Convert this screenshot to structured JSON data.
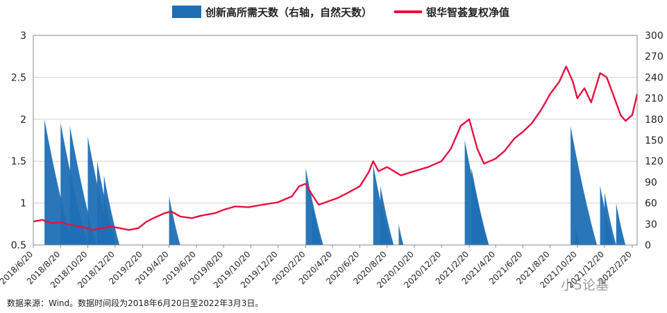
{
  "chart_data": {
    "type": "bar+line",
    "legend": {
      "bar_label": "创新高所需天数（右轴，自然天数）",
      "line_label": "银华智荟复权净值"
    },
    "colors": {
      "bar": "#1f6fb5",
      "line": "#e8103f",
      "grid": "#d0d0d0"
    },
    "left_axis": {
      "ylim": [
        0.5,
        3
      ],
      "ticks": [
        "0.5",
        "1",
        "1.5",
        "2",
        "2.5",
        "3"
      ]
    },
    "right_axis": {
      "ylim": [
        0,
        300
      ],
      "ticks": [
        "0",
        "30",
        "60",
        "90",
        "120",
        "150",
        "180",
        "210",
        "240",
        "270",
        "300"
      ]
    },
    "x_range": [
      "2018-06-20",
      "2022-03-03"
    ],
    "x_ticks": [
      "2018/6/20",
      "2018/8/20",
      "2018/10/20",
      "2018/12/20",
      "2019/2/20",
      "2019/4/20",
      "2019/6/20",
      "2019/8/20",
      "2019/10/20",
      "2019/12/20",
      "2020/2/20",
      "2020/4/20",
      "2020/6/20",
      "2020/8/20",
      "2020/10/20",
      "2020/12/20",
      "2021/2/20",
      "2021/4/20",
      "2021/6/20",
      "2021/8/20",
      "2021/10/20",
      "2021/12/20",
      "2022/2/20"
    ],
    "grid": true,
    "series": [
      {
        "name": "银华智荟复权净值",
        "axis": "left",
        "kind": "line",
        "points": [
          [
            "2018-06-20",
            0.78
          ],
          [
            "2018-07-10",
            0.8
          ],
          [
            "2018-07-30",
            0.76
          ],
          [
            "2018-08-20",
            0.77
          ],
          [
            "2018-09-10",
            0.74
          ],
          [
            "2018-10-10",
            0.71
          ],
          [
            "2018-10-30",
            0.68
          ],
          [
            "2018-11-20",
            0.7
          ],
          [
            "2018-12-10",
            0.72
          ],
          [
            "2018-12-31",
            0.7
          ],
          [
            "2019-01-20",
            0.68
          ],
          [
            "2019-02-10",
            0.7
          ],
          [
            "2019-03-01",
            0.78
          ],
          [
            "2019-03-20",
            0.83
          ],
          [
            "2019-04-10",
            0.88
          ],
          [
            "2019-04-25",
            0.9
          ],
          [
            "2019-05-15",
            0.84
          ],
          [
            "2019-06-10",
            0.82
          ],
          [
            "2019-07-01",
            0.85
          ],
          [
            "2019-08-01",
            0.88
          ],
          [
            "2019-08-20",
            0.92
          ],
          [
            "2019-09-15",
            0.96
          ],
          [
            "2019-10-15",
            0.95
          ],
          [
            "2019-11-15",
            0.98
          ],
          [
            "2019-12-20",
            1.01
          ],
          [
            "2020-01-20",
            1.08
          ],
          [
            "2020-02-05",
            1.2
          ],
          [
            "2020-02-20",
            1.23
          ],
          [
            "2020-03-05",
            1.1
          ],
          [
            "2020-03-20",
            0.98
          ],
          [
            "2020-04-10",
            1.02
          ],
          [
            "2020-05-01",
            1.06
          ],
          [
            "2020-05-20",
            1.11
          ],
          [
            "2020-06-20",
            1.2
          ],
          [
            "2020-07-10",
            1.37
          ],
          [
            "2020-07-20",
            1.5
          ],
          [
            "2020-08-01",
            1.38
          ],
          [
            "2020-08-20",
            1.43
          ],
          [
            "2020-09-20",
            1.33
          ],
          [
            "2020-10-20",
            1.38
          ],
          [
            "2020-11-20",
            1.43
          ],
          [
            "2020-12-20",
            1.5
          ],
          [
            "2021-01-10",
            1.65
          ],
          [
            "2021-02-01",
            1.92
          ],
          [
            "2021-02-20",
            2.0
          ],
          [
            "2021-03-10",
            1.65
          ],
          [
            "2021-03-25",
            1.47
          ],
          [
            "2021-04-20",
            1.53
          ],
          [
            "2021-05-10",
            1.62
          ],
          [
            "2021-06-01",
            1.77
          ],
          [
            "2021-06-20",
            1.85
          ],
          [
            "2021-07-10",
            1.95
          ],
          [
            "2021-08-01",
            2.12
          ],
          [
            "2021-08-20",
            2.3
          ],
          [
            "2021-09-10",
            2.45
          ],
          [
            "2021-09-25",
            2.63
          ],
          [
            "2021-10-10",
            2.45
          ],
          [
            "2021-10-20",
            2.25
          ],
          [
            "2021-11-05",
            2.37
          ],
          [
            "2021-11-20",
            2.2
          ],
          [
            "2021-12-10",
            2.55
          ],
          [
            "2021-12-25",
            2.5
          ],
          [
            "2022-01-10",
            2.27
          ],
          [
            "2022-01-25",
            2.05
          ],
          [
            "2022-02-05",
            1.98
          ],
          [
            "2022-02-20",
            2.05
          ],
          [
            "2022-03-03",
            2.3
          ]
        ]
      },
      {
        "name": "创新高所需天数（右轴，自然天数）",
        "axis": "right",
        "kind": "area",
        "points": [
          [
            "2018-07-15",
            180
          ],
          [
            "2018-08-20",
            175
          ],
          [
            "2018-09-10",
            170
          ],
          [
            "2018-10-20",
            155
          ],
          [
            "2018-11-10",
            120
          ],
          [
            "2018-11-25",
            100
          ],
          [
            "2019-04-20",
            70
          ],
          [
            "2020-02-20",
            110
          ],
          [
            "2020-03-05",
            60
          ],
          [
            "2020-07-20",
            115
          ],
          [
            "2020-08-05",
            85
          ],
          [
            "2020-09-15",
            30
          ],
          [
            "2021-02-10",
            150
          ],
          [
            "2021-02-25",
            110
          ],
          [
            "2021-10-05",
            170
          ],
          [
            "2021-10-15",
            30
          ],
          [
            "2021-12-10",
            85
          ],
          [
            "2021-12-20",
            75
          ],
          [
            "2022-01-15",
            60
          ]
        ]
      }
    ]
  },
  "footnote": "数据来源：Wind。数据时间段为2018年6月20日至2022年3月3日。",
  "watermark": "小5论基"
}
